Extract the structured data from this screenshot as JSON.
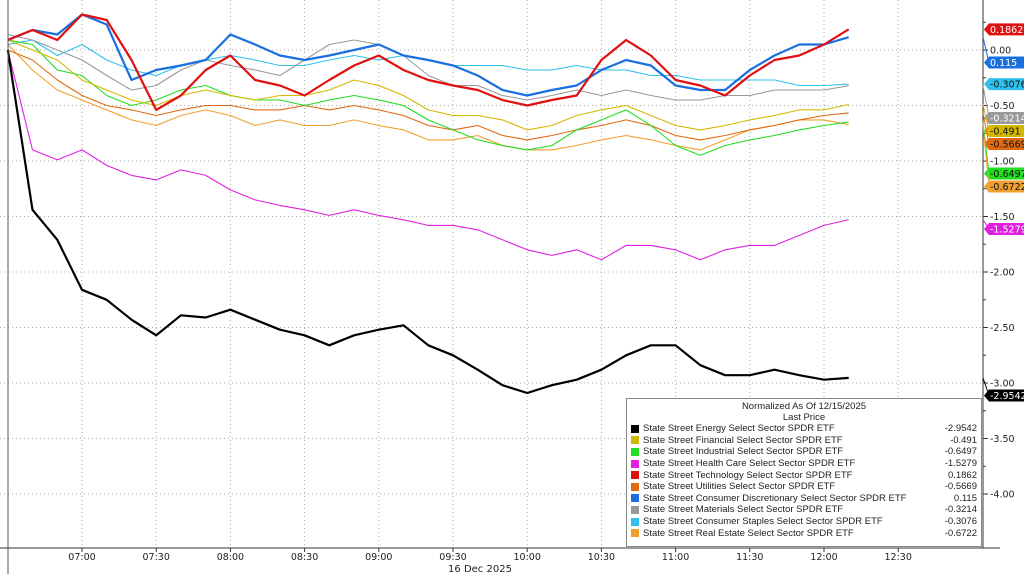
{
  "chart_data": {
    "type": "line",
    "title": "Normalized As Of 12/15/2025",
    "subtitle": "Last Price",
    "xlabel": "16 Dec 2025",
    "ylabel": "",
    "x_tick_labels": [
      "07:00",
      "07:30",
      "08:00",
      "08:30",
      "09:00",
      "09:30",
      "10:00",
      "10:30",
      "11:00",
      "11:30",
      "12:00",
      "12:30"
    ],
    "y_tick_labels": [
      "0.00",
      "-0.50",
      "-1.00",
      "-1.50",
      "-2.00",
      "-2.50",
      "-3.00",
      "-3.50",
      "-4.00"
    ],
    "ylim": [
      -4.45,
      0.45
    ],
    "xlim": [
      "06:27",
      "12:51"
    ],
    "grid": true,
    "legend_position": "bottom-right",
    "x": [
      "06:30",
      "06:40",
      "06:50",
      "07:00",
      "07:10",
      "07:20",
      "07:30",
      "07:40",
      "07:50",
      "08:00",
      "08:10",
      "08:20",
      "08:30",
      "08:40",
      "08:50",
      "09:00",
      "09:10",
      "09:20",
      "09:30",
      "09:40",
      "09:50",
      "10:00",
      "10:10",
      "10:20",
      "10:30",
      "10:40",
      "10:50",
      "11:00",
      "11:10",
      "11:20",
      "11:30",
      "11:40",
      "11:50",
      "12:00",
      "12:10"
    ],
    "series": [
      {
        "name": "State Street Energy Select Sector SPDR ETF",
        "last": "-2.9542",
        "color": "#000000",
        "values": [
          0,
          -1.44,
          -1.71,
          -2.16,
          -2.25,
          -2.43,
          -2.57,
          -2.39,
          -2.41,
          -2.34,
          -2.43,
          -2.52,
          -2.57,
          -2.66,
          -2.57,
          -2.52,
          -2.48,
          -2.66,
          -2.75,
          -2.88,
          -3.02,
          -3.09,
          -3.02,
          -2.97,
          -2.88,
          -2.75,
          -2.66,
          -2.66,
          -2.84,
          -2.93,
          -2.93,
          -2.88,
          -2.93,
          -2.97,
          -2.9542
        ]
      },
      {
        "name": "State Street Financial Select Sector SPDR ETF",
        "last": "-0.491",
        "color": "#d4b800",
        "values": [
          0.09,
          0,
          -0.09,
          -0.27,
          -0.36,
          -0.45,
          -0.5,
          -0.41,
          -0.36,
          -0.41,
          -0.45,
          -0.41,
          -0.41,
          -0.36,
          -0.27,
          -0.32,
          -0.41,
          -0.54,
          -0.59,
          -0.59,
          -0.63,
          -0.72,
          -0.68,
          -0.59,
          -0.54,
          -0.5,
          -0.59,
          -0.68,
          -0.72,
          -0.68,
          -0.63,
          -0.59,
          -0.54,
          -0.54,
          -0.491
        ]
      },
      {
        "name": "State Street Industrial Select Sector SPDR ETF",
        "last": "-0.6497",
        "color": "#22dd22",
        "values": [
          0.09,
          0.05,
          -0.18,
          -0.23,
          -0.41,
          -0.5,
          -0.45,
          -0.36,
          -0.32,
          -0.41,
          -0.45,
          -0.45,
          -0.5,
          -0.45,
          -0.41,
          -0.45,
          -0.5,
          -0.63,
          -0.72,
          -0.81,
          -0.86,
          -0.9,
          -0.86,
          -0.72,
          -0.63,
          -0.54,
          -0.68,
          -0.86,
          -0.95,
          -0.86,
          -0.81,
          -0.77,
          -0.72,
          -0.68,
          -0.6497
        ]
      },
      {
        "name": "State Street Health Care Select Sector SPDR ETF",
        "last": "-1.5279",
        "color": "#e020e0",
        "values": [
          0,
          -0.9,
          -0.99,
          -0.9,
          -1.04,
          -1.13,
          -1.17,
          -1.08,
          -1.13,
          -1.26,
          -1.35,
          -1.4,
          -1.44,
          -1.49,
          -1.44,
          -1.49,
          -1.53,
          -1.58,
          -1.58,
          -1.62,
          -1.71,
          -1.8,
          -1.85,
          -1.8,
          -1.89,
          -1.76,
          -1.76,
          -1.8,
          -1.89,
          -1.8,
          -1.76,
          -1.76,
          -1.67,
          -1.58,
          -1.5279
        ]
      },
      {
        "name": "State Street Technology Select Sector SPDR ETF",
        "last": "0.1862",
        "color": "#e01010",
        "values": [
          0.09,
          0.18,
          0.09,
          0.32,
          0.27,
          -0.09,
          -0.54,
          -0.41,
          -0.18,
          -0.05,
          -0.27,
          -0.32,
          -0.41,
          -0.27,
          -0.14,
          -0.05,
          -0.18,
          -0.27,
          -0.32,
          -0.36,
          -0.45,
          -0.5,
          -0.45,
          -0.41,
          -0.09,
          0.09,
          -0.05,
          -0.27,
          -0.32,
          -0.41,
          -0.23,
          -0.09,
          -0.05,
          0.05,
          0.1862
        ]
      },
      {
        "name": "State Street Utilities Select Sector SPDR ETF",
        "last": "-0.5669",
        "color": "#e06a10",
        "values": [
          0,
          -0.09,
          -0.27,
          -0.41,
          -0.5,
          -0.54,
          -0.59,
          -0.54,
          -0.5,
          -0.5,
          -0.54,
          -0.54,
          -0.5,
          -0.54,
          -0.5,
          -0.54,
          -0.59,
          -0.68,
          -0.72,
          -0.68,
          -0.77,
          -0.81,
          -0.77,
          -0.72,
          -0.68,
          -0.63,
          -0.68,
          -0.77,
          -0.81,
          -0.77,
          -0.72,
          -0.68,
          -0.63,
          -0.59,
          -0.5669
        ]
      },
      {
        "name": "State Street Consumer Discretionary Select Sector SPDR ETF",
        "last": "0.115",
        "color": "#1a6fe0",
        "values": [
          0.09,
          0.18,
          0.14,
          0.32,
          0.23,
          -0.27,
          -0.18,
          -0.14,
          -0.09,
          0.14,
          0.05,
          -0.05,
          -0.09,
          -0.05,
          0,
          0.05,
          -0.05,
          -0.09,
          -0.14,
          -0.23,
          -0.36,
          -0.41,
          -0.36,
          -0.32,
          -0.18,
          -0.09,
          -0.14,
          -0.32,
          -0.36,
          -0.36,
          -0.18,
          -0.05,
          0.05,
          0.05,
          0.115
        ]
      },
      {
        "name": "State Street Materials Select Sector SPDR ETF",
        "last": "-0.3214",
        "color": "#999999",
        "values": [
          0.14,
          0.09,
          0,
          -0.09,
          -0.23,
          -0.36,
          -0.32,
          -0.18,
          -0.09,
          -0.14,
          -0.18,
          -0.23,
          -0.09,
          0.05,
          0.09,
          0.05,
          -0.05,
          -0.23,
          -0.32,
          -0.32,
          -0.41,
          -0.45,
          -0.41,
          -0.36,
          -0.41,
          -0.36,
          -0.41,
          -0.45,
          -0.45,
          -0.41,
          -0.41,
          -0.36,
          -0.36,
          -0.36,
          -0.3214
        ]
      },
      {
        "name": "State Street Consumer Staples Select Sector SPDR ETF",
        "last": "-0.3076",
        "color": "#30c0ee",
        "values": [
          0.05,
          0.09,
          -0.05,
          0.05,
          -0.09,
          -0.18,
          -0.23,
          -0.14,
          -0.09,
          -0.05,
          -0.09,
          -0.14,
          -0.14,
          -0.09,
          -0.05,
          -0.09,
          -0.05,
          -0.09,
          -0.14,
          -0.14,
          -0.14,
          -0.18,
          -0.18,
          -0.14,
          -0.18,
          -0.18,
          -0.23,
          -0.23,
          -0.27,
          -0.27,
          -0.27,
          -0.27,
          -0.32,
          -0.32,
          -0.3076
        ]
      },
      {
        "name": "State Street Real Estate Select Sector SPDR ETF",
        "last": "-0.6722",
        "color": "#f0a030",
        "values": [
          0.05,
          -0.18,
          -0.36,
          -0.45,
          -0.54,
          -0.63,
          -0.68,
          -0.59,
          -0.54,
          -0.59,
          -0.68,
          -0.63,
          -0.68,
          -0.68,
          -0.63,
          -0.68,
          -0.72,
          -0.81,
          -0.81,
          -0.77,
          -0.86,
          -0.9,
          -0.9,
          -0.86,
          -0.81,
          -0.77,
          -0.81,
          -0.86,
          -0.9,
          -0.81,
          -0.72,
          -0.68,
          -0.63,
          -0.63,
          -0.6722
        ]
      }
    ]
  }
}
